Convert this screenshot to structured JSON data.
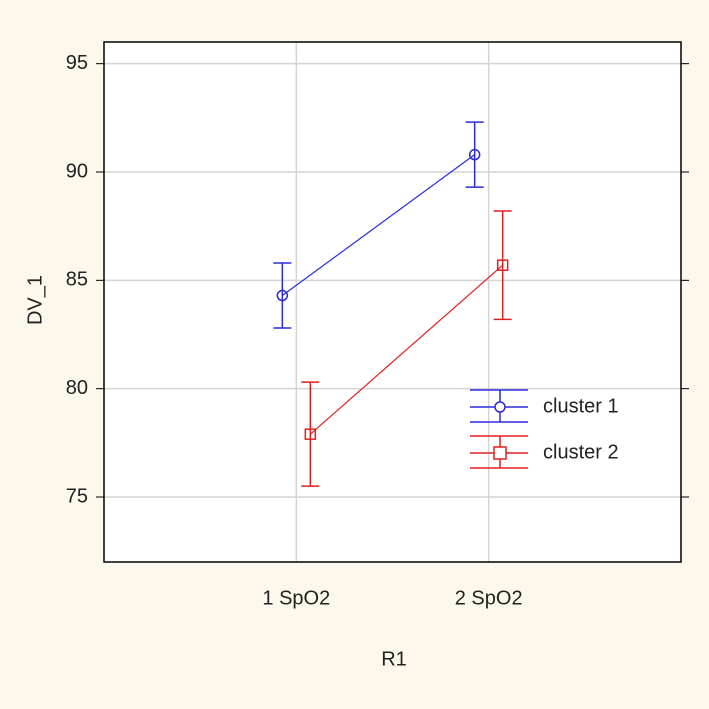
{
  "chart_data": {
    "type": "line",
    "x_label": "R1",
    "y_label": "DV_1",
    "categories": [
      "1 SpO2",
      "2 SpO2"
    ],
    "series": [
      {
        "name": "cluster 1",
        "color": "#2b2bdc",
        "marker": "circle",
        "values": [
          84.3,
          90.8
        ],
        "errors": [
          1.5,
          1.5
        ]
      },
      {
        "name": "cluster 2",
        "color": "#e02020",
        "marker": "square",
        "values": [
          77.9,
          85.7
        ],
        "errors": [
          2.4,
          2.5
        ]
      }
    ],
    "ylim": [
      72,
      96
    ],
    "yticks": [
      75,
      80,
      85,
      90,
      95
    ],
    "grid": true,
    "legend": "right"
  }
}
